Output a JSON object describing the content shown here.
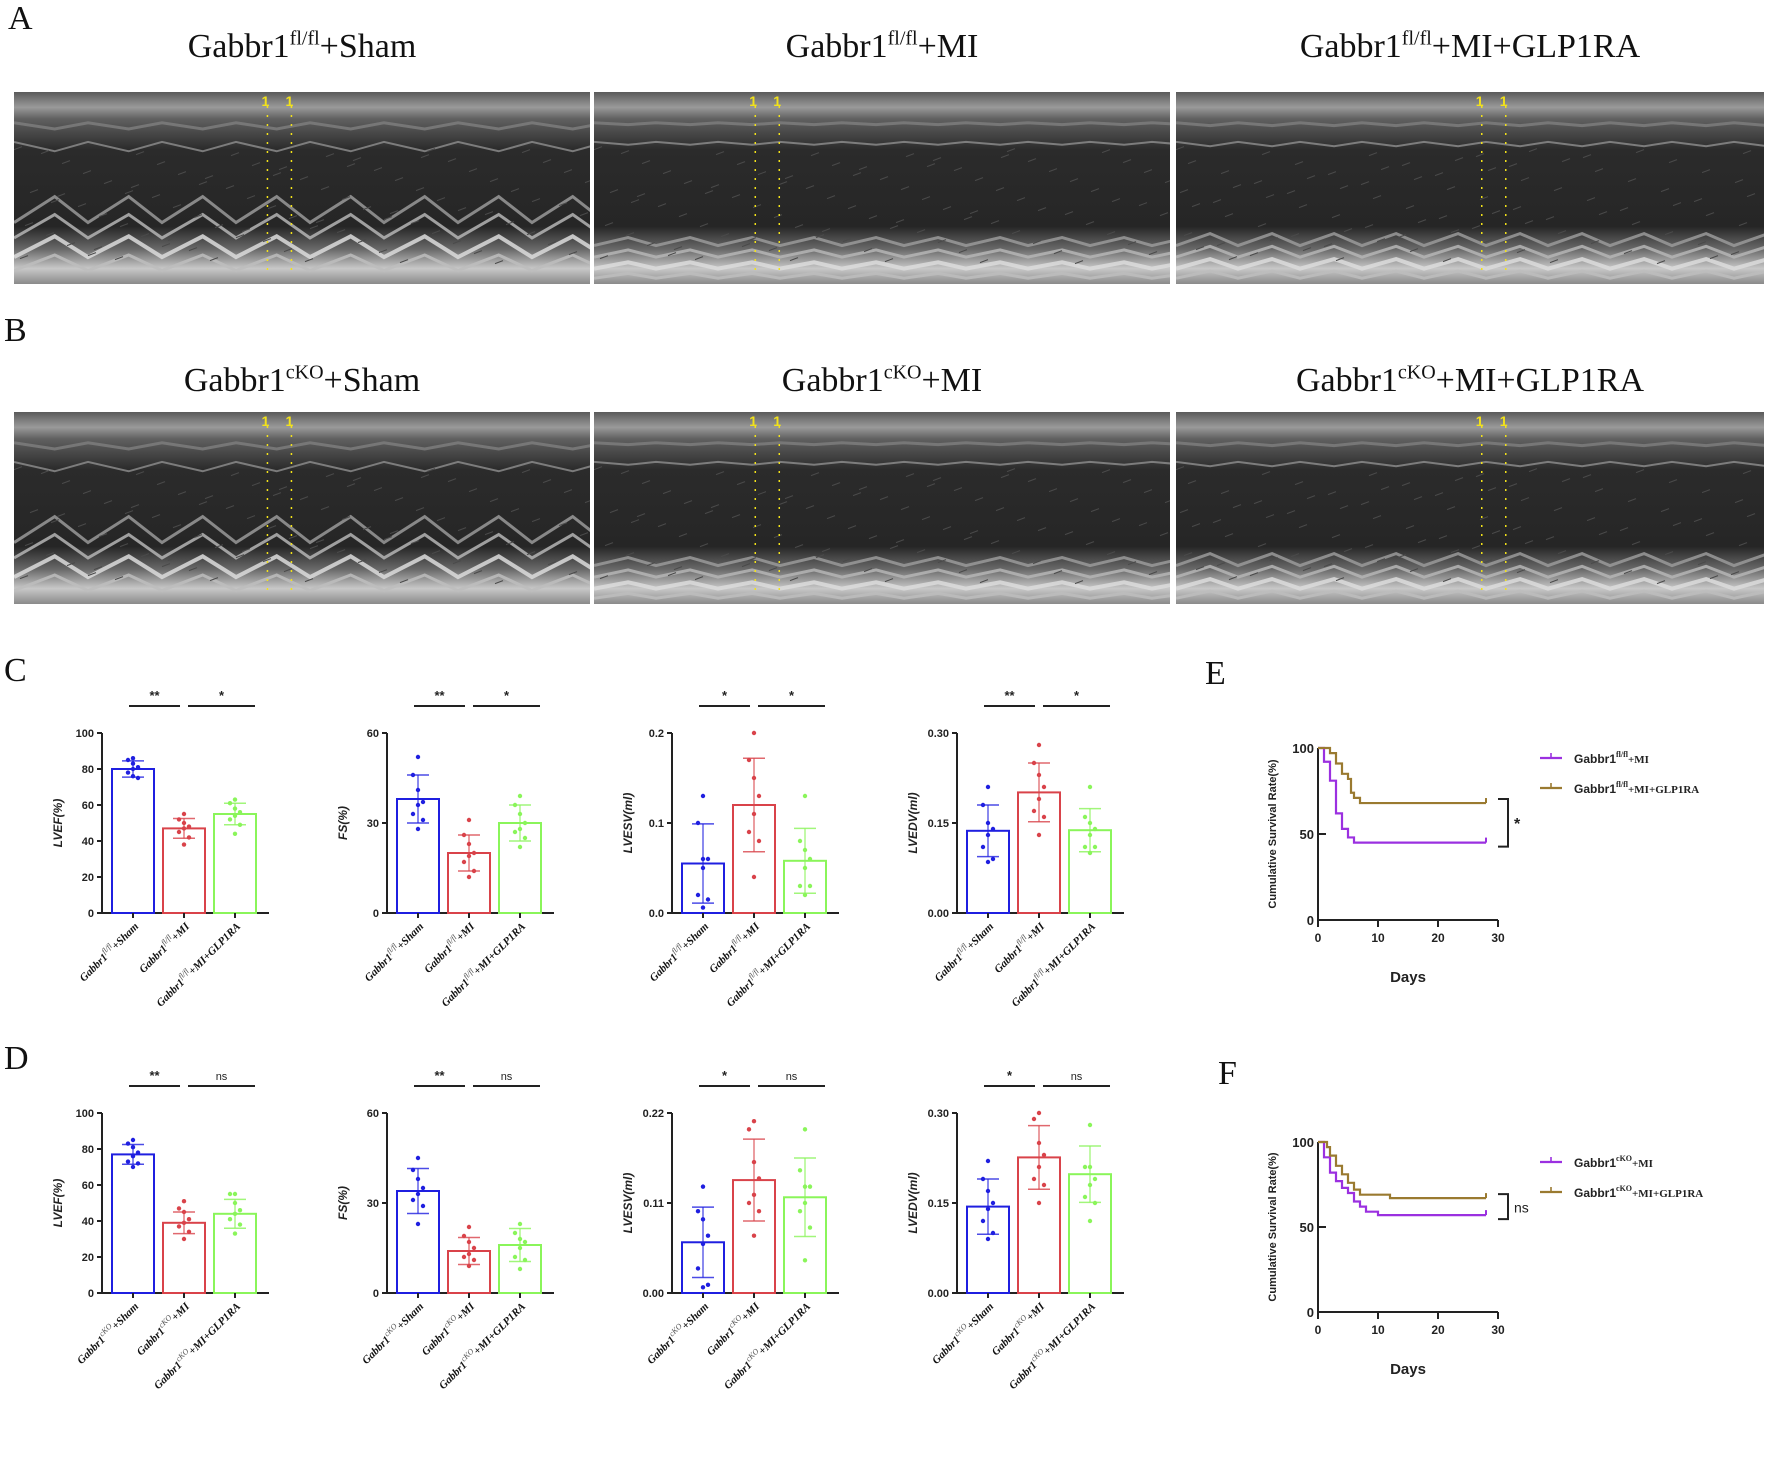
{
  "figure": {
    "panel_letters": [
      "A",
      "B",
      "C",
      "D",
      "E",
      "F"
    ],
    "row_A": {
      "titles": [
        {
          "base": "Gabbr1",
          "sup": "fl/fl",
          "suffix": "+Sham"
        },
        {
          "base": "Gabbr1",
          "sup": "fl/fl",
          "suffix": "+MI"
        },
        {
          "base": "Gabbr1",
          "sup": "fl/fl",
          "suffix": "+MI+GLP1RA"
        }
      ],
      "marker_label": "1  1"
    },
    "row_B": {
      "titles": [
        {
          "base": "Gabbr1",
          "sup": "cKO",
          "suffix": "+Sham"
        },
        {
          "base": "Gabbr1",
          "sup": "cKO",
          "suffix": "+MI"
        },
        {
          "base": "Gabbr1",
          "sup": "cKO",
          "suffix": "+MI+GLP1RA"
        }
      ],
      "marker_label": "1  1"
    },
    "colors": {
      "sham": "#1f1fe0",
      "mi": "#d9434a",
      "glp1ra": "#8af55a",
      "km_mi": "#9b30e0",
      "km_glp1ra": "#9a7a30",
      "axis": "#222222"
    }
  },
  "chart_data": [
    {
      "id": "C-LVEF",
      "panel": "C",
      "type": "bar",
      "ylabel": "LVEF(%)",
      "ylim": [
        0,
        100
      ],
      "yticks": [
        "0",
        "20",
        "40",
        "60",
        "80",
        "100"
      ],
      "categories": [
        "Gabbr1fl/fl+Sham",
        "Gabbr1fl/fl+MI",
        "Gabbr1fl/fl+MI+GLP1RA"
      ],
      "values": [
        80,
        47,
        55
      ],
      "sd": [
        4.5,
        5.5,
        6
      ],
      "points": [
        [
          86,
          85,
          83,
          81,
          80,
          78,
          75,
          76
        ],
        [
          55,
          52,
          50,
          48,
          47,
          45,
          42,
          38
        ],
        [
          63,
          61,
          58,
          56,
          54,
          52,
          49,
          44
        ]
      ],
      "significance": [
        {
          "from": 0,
          "to": 1,
          "label": "**"
        },
        {
          "from": 1,
          "to": 2,
          "label": "*"
        }
      ]
    },
    {
      "id": "C-FS",
      "panel": "C",
      "type": "bar",
      "ylabel": "FS(%)",
      "ylim": [
        0,
        60
      ],
      "yticks": [
        "0",
        "30",
        "60"
      ],
      "categories": [
        "Gabbr1fl/fl+Sham",
        "Gabbr1fl/fl+MI",
        "Gabbr1fl/fl+MI+GLP1RA"
      ],
      "values": [
        38,
        20,
        30
      ],
      "sd": [
        8,
        6,
        6
      ],
      "points": [
        [
          52,
          46,
          41,
          37,
          36,
          33,
          31,
          28
        ],
        [
          31,
          26,
          23,
          20,
          19,
          17,
          14,
          12
        ],
        [
          39,
          36,
          33,
          30,
          28,
          27,
          25,
          22
        ]
      ],
      "significance": [
        {
          "from": 0,
          "to": 1,
          "label": "**"
        },
        {
          "from": 1,
          "to": 2,
          "label": "*"
        }
      ]
    },
    {
      "id": "C-LVESV",
      "panel": "C",
      "type": "bar",
      "ylabel": "LVESV(ml)",
      "ylim": [
        0,
        0.2
      ],
      "yticks": [
        "0.0",
        "0.1",
        "0.2"
      ],
      "categories": [
        "Gabbr1fl/fl+Sham",
        "Gabbr1fl/fl+MI",
        "Gabbr1fl/fl+MI+GLP1RA"
      ],
      "values": [
        0.055,
        0.12,
        0.058
      ],
      "sd": [
        0.044,
        0.052,
        0.036
      ],
      "points": [
        [
          0.13,
          0.1,
          0.06,
          0.06,
          0.05,
          0.02,
          0.015,
          0.006
        ],
        [
          0.2,
          0.17,
          0.15,
          0.13,
          0.11,
          0.09,
          0.08,
          0.04
        ],
        [
          0.13,
          0.08,
          0.07,
          0.06,
          0.05,
          0.03,
          0.03,
          0.02
        ]
      ],
      "significance": [
        {
          "from": 0,
          "to": 1,
          "label": "*"
        },
        {
          "from": 1,
          "to": 2,
          "label": "*"
        }
      ]
    },
    {
      "id": "C-LVEDV",
      "panel": "C",
      "type": "bar",
      "ylabel": "LVEDV(ml)",
      "ylim": [
        0,
        0.3
      ],
      "yticks": [
        "0.00",
        "0.15",
        "0.30"
      ],
      "categories": [
        "Gabbr1fl/fl+Sham",
        "Gabbr1fl/fl+MI",
        "Gabbr1fl/fl+MI+GLP1RA"
      ],
      "values": [
        0.137,
        0.201,
        0.138
      ],
      "sd": [
        0.043,
        0.049,
        0.036
      ],
      "points": [
        [
          0.21,
          0.18,
          0.15,
          0.14,
          0.13,
          0.11,
          0.09,
          0.085
        ],
        [
          0.28,
          0.25,
          0.23,
          0.21,
          0.19,
          0.17,
          0.16,
          0.13
        ],
        [
          0.21,
          0.16,
          0.15,
          0.14,
          0.13,
          0.11,
          0.11,
          0.1
        ]
      ],
      "significance": [
        {
          "from": 0,
          "to": 1,
          "label": "**"
        },
        {
          "from": 1,
          "to": 2,
          "label": "*"
        }
      ]
    },
    {
      "id": "D-LVEF",
      "panel": "D",
      "type": "bar",
      "ylabel": "LVEF(%)",
      "ylim": [
        0,
        100
      ],
      "yticks": [
        "0",
        "20",
        "40",
        "60",
        "80",
        "100"
      ],
      "categories": [
        "Gabbr1cKO+Sham",
        "Gabbr1cKO+MI",
        "Gabbr1cKO+MI+GLP1RA"
      ],
      "values": [
        77,
        39,
        44
      ],
      "sd": [
        5.5,
        6,
        8
      ],
      "points": [
        [
          85,
          83,
          81,
          78,
          76,
          73,
          72,
          70
        ],
        [
          51,
          47,
          45,
          41,
          39,
          37,
          34,
          30
        ],
        [
          55,
          55,
          50,
          46,
          44,
          41,
          38,
          33
        ]
      ],
      "significance": [
        {
          "from": 0,
          "to": 1,
          "label": "**"
        },
        {
          "from": 1,
          "to": 2,
          "label": "ns"
        }
      ]
    },
    {
      "id": "D-FS",
      "panel": "D",
      "type": "bar",
      "ylabel": "FS(%)",
      "ylim": [
        0,
        60
      ],
      "yticks": [
        "0",
        "30",
        "60"
      ],
      "categories": [
        "Gabbr1cKO+Sham",
        "Gabbr1cKO+MI",
        "Gabbr1cKO+MI+GLP1RA"
      ],
      "values": [
        34,
        14,
        16
      ],
      "sd": [
        7.5,
        4.5,
        5.5
      ],
      "points": [
        [
          45,
          41,
          38,
          35,
          33,
          31,
          29,
          23
        ],
        [
          22,
          19,
          17,
          15,
          13,
          12,
          11,
          9
        ],
        [
          23,
          20,
          18,
          17,
          15,
          12,
          11,
          8
        ]
      ],
      "significance": [
        {
          "from": 0,
          "to": 1,
          "label": "**"
        },
        {
          "from": 1,
          "to": 2,
          "label": "ns"
        }
      ]
    },
    {
      "id": "D-LVESV",
      "panel": "D",
      "type": "bar",
      "ylabel": "LVESV(ml)",
      "ylim": [
        0,
        0.22
      ],
      "yticks": [
        "0.00",
        "0.11",
        "0.22"
      ],
      "categories": [
        "Gabbr1cKO+Sham",
        "Gabbr1cKO+MI",
        "Gabbr1cKO+MI+GLP1RA"
      ],
      "values": [
        0.062,
        0.138,
        0.117
      ],
      "sd": [
        0.043,
        0.05,
        0.048
      ],
      "points": [
        [
          0.13,
          0.1,
          0.09,
          0.07,
          0.06,
          0.03,
          0.01,
          0.007
        ],
        [
          0.21,
          0.2,
          0.16,
          0.14,
          0.12,
          0.11,
          0.1,
          0.07
        ],
        [
          0.2,
          0.15,
          0.13,
          0.13,
          0.11,
          0.1,
          0.08,
          0.04
        ]
      ],
      "significance": [
        {
          "from": 0,
          "to": 1,
          "label": "*"
        },
        {
          "from": 1,
          "to": 2,
          "label": "ns"
        }
      ]
    },
    {
      "id": "D-LVEDV",
      "panel": "D",
      "type": "bar",
      "ylabel": "LVEDV(ml)",
      "ylim": [
        0,
        0.3
      ],
      "yticks": [
        "0.00",
        "0.15",
        "0.30"
      ],
      "categories": [
        "Gabbr1cKO+Sham",
        "Gabbr1cKO+MI",
        "Gabbr1cKO+MI+GLP1RA"
      ],
      "values": [
        0.144,
        0.226,
        0.198
      ],
      "sd": [
        0.046,
        0.053,
        0.047
      ],
      "points": [
        [
          0.22,
          0.19,
          0.17,
          0.15,
          0.14,
          0.12,
          0.1,
          0.09
        ],
        [
          0.3,
          0.29,
          0.25,
          0.23,
          0.21,
          0.19,
          0.18,
          0.15
        ],
        [
          0.28,
          0.21,
          0.21,
          0.19,
          0.18,
          0.16,
          0.15,
          0.12
        ]
      ],
      "significance": [
        {
          "from": 0,
          "to": 1,
          "label": "*"
        },
        {
          "from": 1,
          "to": 2,
          "label": "ns"
        }
      ]
    },
    {
      "id": "E-survival",
      "panel": "E",
      "type": "line",
      "xlabel": "Days",
      "ylabel": "Cumulative Survival Rate(%)",
      "xlim": [
        0,
        30
      ],
      "ylim": [
        0,
        100
      ],
      "xticks": [
        "0",
        "10",
        "20",
        "30"
      ],
      "yticks": [
        "0",
        "50",
        "100"
      ],
      "legend_position": "right",
      "series": [
        {
          "name": "Gabbr1fl/fl+MI",
          "legend_base": "Gabbr1",
          "legend_sup": "fl/fl",
          "legend_suffix": "+MI",
          "color": "#9b30e0",
          "steps": [
            [
              0,
              100
            ],
            [
              1,
              92
            ],
            [
              2,
              81
            ],
            [
              3,
              62
            ],
            [
              4,
              53
            ],
            [
              5,
              48
            ],
            [
              6,
              45
            ],
            [
              28,
              45
            ]
          ]
        },
        {
          "name": "Gabbr1fl/fl+MI+GLP1RA",
          "legend_base": "Gabbr1",
          "legend_sup": "fl/fl",
          "legend_suffix": "+MI+GLP1RA",
          "color": "#9a7a30",
          "steps": [
            [
              0,
              100
            ],
            [
              2,
              97
            ],
            [
              3,
              91
            ],
            [
              4,
              85
            ],
            [
              5,
              82
            ],
            [
              5.5,
              74
            ],
            [
              6,
              71
            ],
            [
              7,
              68
            ],
            [
              28,
              68
            ]
          ]
        }
      ],
      "significance": "*"
    },
    {
      "id": "F-survival",
      "panel": "F",
      "type": "line",
      "xlabel": "Days",
      "ylabel": "Cumulative Survival Rate(%)",
      "xlim": [
        0,
        30
      ],
      "ylim": [
        0,
        100
      ],
      "xticks": [
        "0",
        "10",
        "20",
        "30"
      ],
      "yticks": [
        "0",
        "50",
        "100"
      ],
      "legend_position": "right",
      "series": [
        {
          "name": "Gabbr1cKO+MI",
          "legend_base": "Gabbr1",
          "legend_sup": "cKO",
          "legend_suffix": "+MI",
          "color": "#9b30e0",
          "steps": [
            [
              0,
              100
            ],
            [
              1,
              91
            ],
            [
              2,
              82
            ],
            [
              3,
              77
            ],
            [
              4,
              73
            ],
            [
              5,
              70
            ],
            [
              6,
              65
            ],
            [
              7,
              62
            ],
            [
              8,
              59
            ],
            [
              10,
              57
            ],
            [
              28,
              57
            ]
          ]
        },
        {
          "name": "Gabbr1cKO+MI+GLP1RA",
          "legend_base": "Gabbr1",
          "legend_sup": "cKO",
          "legend_suffix": "+MI+GLP1RA",
          "color": "#9a7a30",
          "steps": [
            [
              0,
              100
            ],
            [
              1.5,
              97
            ],
            [
              2,
              92
            ],
            [
              3,
              86
            ],
            [
              4,
              81
            ],
            [
              5,
              76
            ],
            [
              6,
              72
            ],
            [
              7,
              69
            ],
            [
              12,
              67
            ],
            [
              28,
              67
            ]
          ]
        }
      ],
      "significance": "ns"
    }
  ]
}
